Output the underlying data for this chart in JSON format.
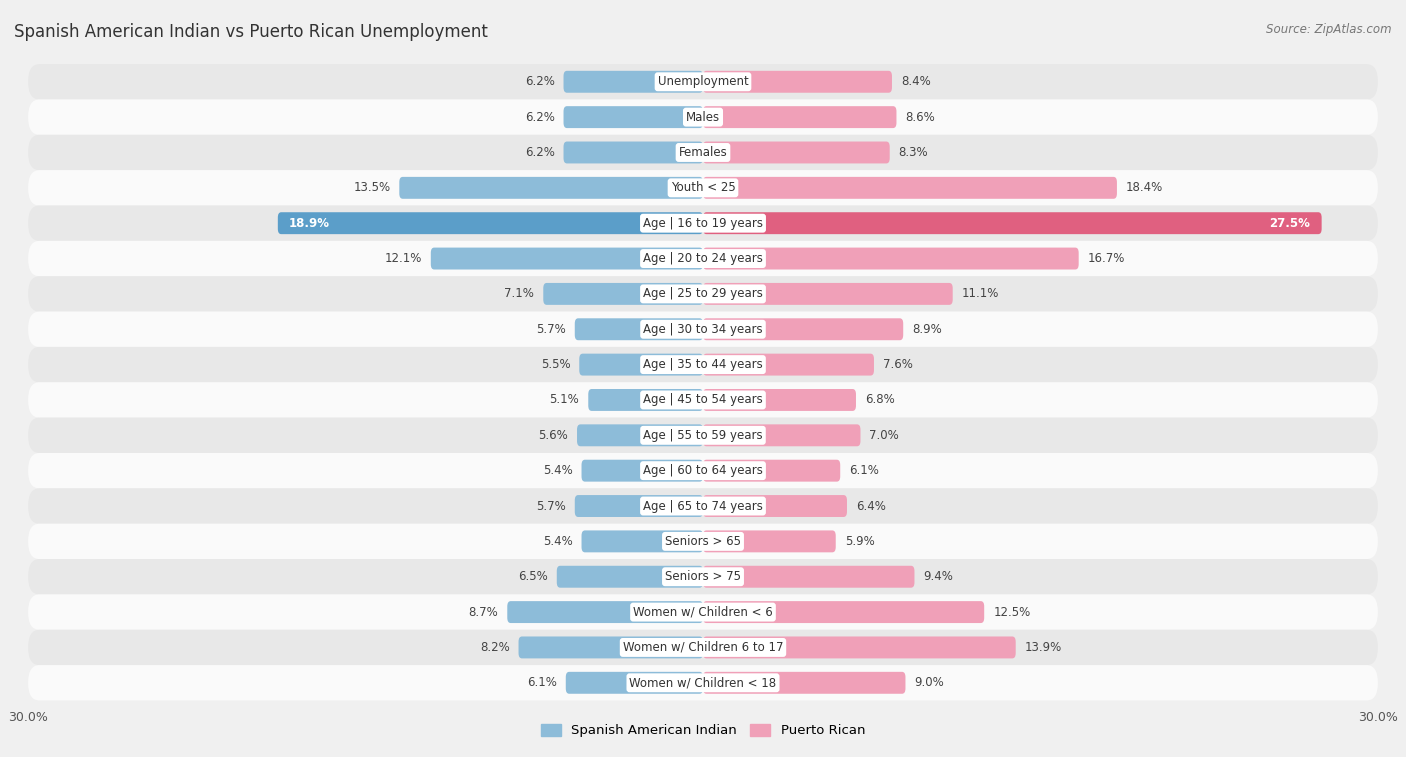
{
  "title": "Spanish American Indian vs Puerto Rican Unemployment",
  "source": "Source: ZipAtlas.com",
  "categories": [
    "Unemployment",
    "Males",
    "Females",
    "Youth < 25",
    "Age | 16 to 19 years",
    "Age | 20 to 24 years",
    "Age | 25 to 29 years",
    "Age | 30 to 34 years",
    "Age | 35 to 44 years",
    "Age | 45 to 54 years",
    "Age | 55 to 59 years",
    "Age | 60 to 64 years",
    "Age | 65 to 74 years",
    "Seniors > 65",
    "Seniors > 75",
    "Women w/ Children < 6",
    "Women w/ Children 6 to 17",
    "Women w/ Children < 18"
  ],
  "spanish_american_indian": [
    6.2,
    6.2,
    6.2,
    13.5,
    18.9,
    12.1,
    7.1,
    5.7,
    5.5,
    5.1,
    5.6,
    5.4,
    5.7,
    5.4,
    6.5,
    8.7,
    8.2,
    6.1
  ],
  "puerto_rican": [
    8.4,
    8.6,
    8.3,
    18.4,
    27.5,
    16.7,
    11.1,
    8.9,
    7.6,
    6.8,
    7.0,
    6.1,
    6.4,
    5.9,
    9.4,
    12.5,
    13.9,
    9.0
  ],
  "color_blue": "#8dbcd9",
  "color_pink": "#f0a0b8",
  "color_blue_highlight": "#5b9ec9",
  "color_pink_highlight": "#e06080",
  "background_color": "#f0f0f0",
  "row_light_color": "#fafafa",
  "row_dark_color": "#e8e8e8",
  "axis_max": 30.0,
  "legend_label_left": "Spanish American Indian",
  "legend_label_right": "Puerto Rican"
}
